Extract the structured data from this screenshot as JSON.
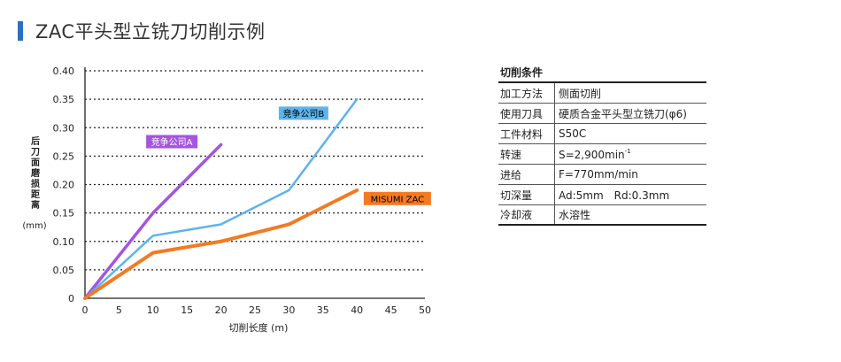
{
  "page": {
    "title": "ZAC平头型立铣刀切削示例"
  },
  "colors": {
    "title_mark": "#2b6fc0",
    "series_a": "#a554e0",
    "series_b": "#5bb4ee",
    "series_zac": "#f47a22"
  },
  "chart_data": {
    "type": "line",
    "title": "",
    "xlabel": "切削长度 (m)",
    "ylabel_lines": [
      "后",
      "刀",
      "面",
      "磨",
      "损",
      "距",
      "离"
    ],
    "ylabel_unit": "(mm)",
    "xlim": [
      0,
      50
    ],
    "ylim": [
      0,
      0.4
    ],
    "x_ticks": [
      "0",
      "5",
      "10",
      "15",
      "20",
      "25",
      "30",
      "35",
      "40",
      "45",
      "50"
    ],
    "y_ticks": [
      "0",
      "0.05",
      "0.10",
      "0.15",
      "0.20",
      "0.25",
      "0.30",
      "0.35",
      "0.40"
    ],
    "grid": "horizontal dotted",
    "series": [
      {
        "name": "竞争公司A",
        "x": [
          0,
          10,
          20
        ],
        "y": [
          0,
          0.15,
          0.27
        ]
      },
      {
        "name": "竞争公司B",
        "x": [
          0,
          10,
          20,
          30,
          40
        ],
        "y": [
          0,
          0.11,
          0.13,
          0.19,
          0.35
        ]
      },
      {
        "name": "MISUMI ZAC",
        "x": [
          0,
          10,
          20,
          30,
          40
        ],
        "y": [
          0,
          0.08,
          0.1,
          0.13,
          0.19
        ]
      }
    ]
  },
  "conditions": {
    "heading": "切削条件",
    "rows": [
      {
        "key": "加工方法",
        "value": "侧面切削"
      },
      {
        "key": "使用刀具",
        "value": "硬质合金平头型立铣刀(φ6)"
      },
      {
        "key": "工件材料",
        "value": "S50C"
      },
      {
        "key": "转速",
        "value": "S=2,900min",
        "superscript": "-1"
      },
      {
        "key": "进给",
        "value": "F=770mm/min"
      },
      {
        "key": "切深量",
        "value": "Ad:5mm　Rd:0.3mm"
      },
      {
        "key": "冷却液",
        "value": "水溶性"
      }
    ]
  }
}
